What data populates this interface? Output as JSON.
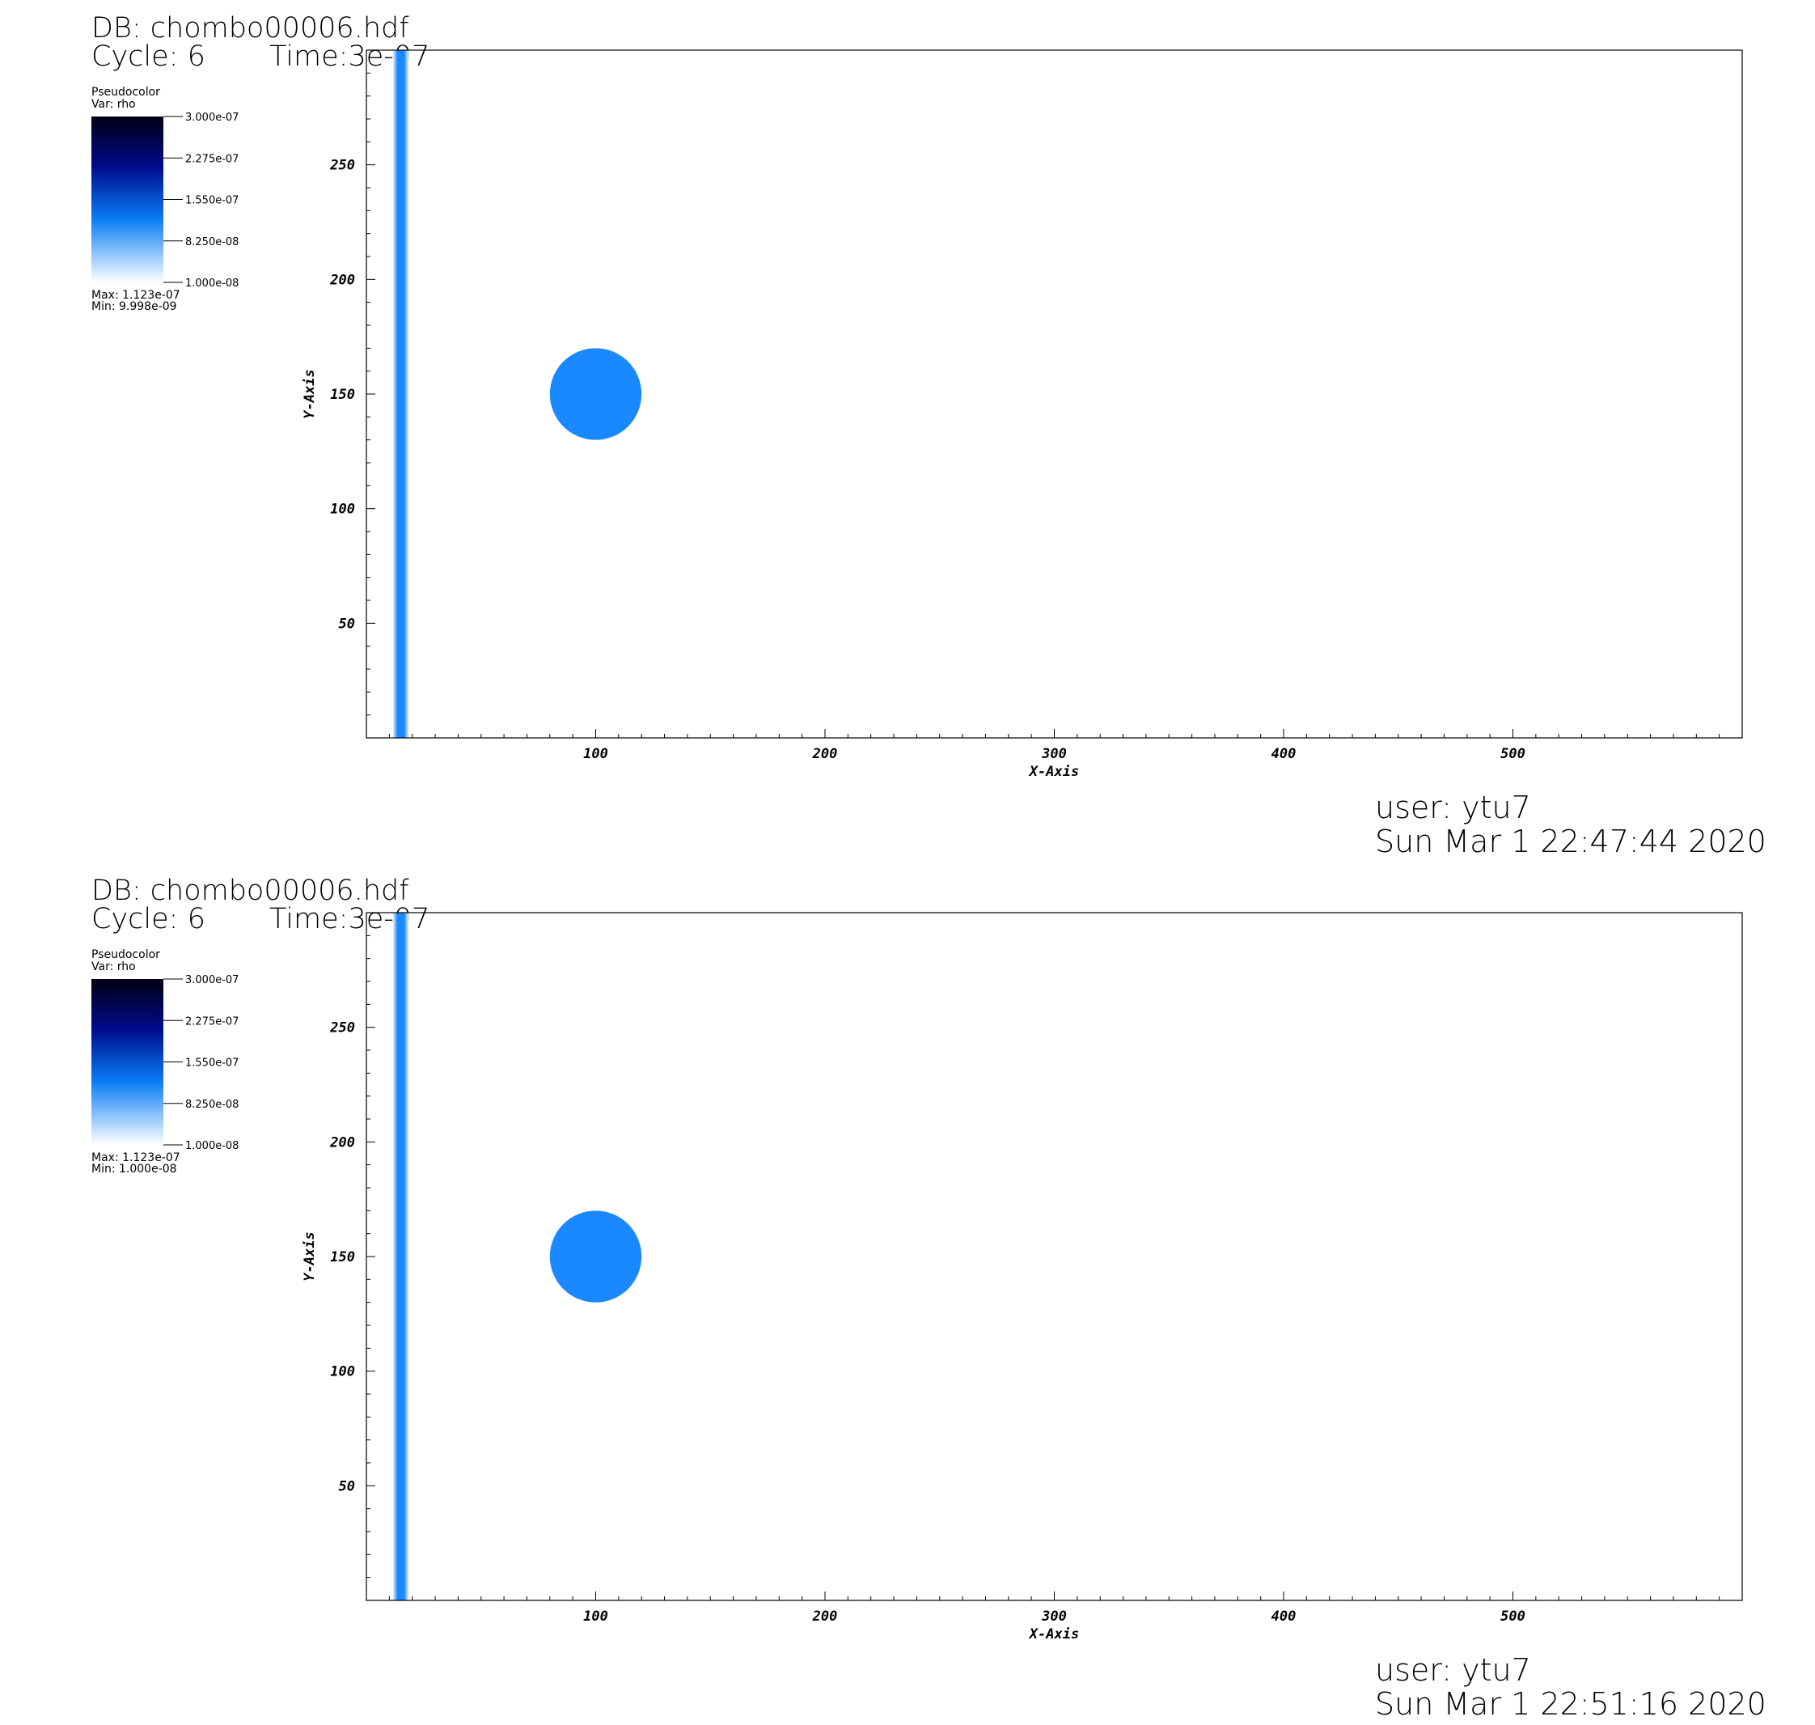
{
  "panels": [
    {
      "db_label": "DB: chombo00006.hdf",
      "cycle_label": "Cycle: 6",
      "time_label": "Time:3e-07",
      "legend": {
        "plot_type": "Pseudocolor",
        "var_label": "Var: rho",
        "ticks": [
          "3.000e-07",
          "2.275e-07",
          "1.550e-07",
          "8.250e-08",
          "1.000e-08"
        ],
        "max_label": "Max:  1.123e-07",
        "min_label": "Min:  9.998e-09"
      },
      "user_label": "user: ytu7",
      "date_label": "Sun Mar  1 22:47:44 2020"
    },
    {
      "db_label": "DB: chombo00006.hdf",
      "cycle_label": "Cycle: 6",
      "time_label": "Time:3e-07",
      "legend": {
        "plot_type": "Pseudocolor",
        "var_label": "Var: rho",
        "ticks": [
          "3.000e-07",
          "2.275e-07",
          "1.550e-07",
          "8.250e-08",
          "1.000e-08"
        ],
        "max_label": "Max:  1.123e-07",
        "min_label": "Min:  1.000e-08"
      },
      "user_label": "user: ytu7",
      "date_label": "Sun Mar  1 22:51:16 2020"
    }
  ],
  "chart_data": [
    {
      "type": "heatmap",
      "variable": "rho",
      "xlabel": "X-Axis",
      "ylabel": "Y-Axis",
      "xlim": [
        0,
        600
      ],
      "ylim": [
        0,
        300
      ],
      "x_ticks": [
        100,
        200,
        300,
        400,
        500
      ],
      "y_ticks": [
        50,
        100,
        150,
        200,
        250
      ],
      "colorbar_range": [
        1e-08,
        3e-07
      ],
      "features": [
        {
          "name": "vertical band",
          "x_center": 15,
          "x_width": 3,
          "value": 1.123e-07
        },
        {
          "name": "circle",
          "x_center": 100,
          "y_center": 150,
          "radius": 20,
          "value": 1.123e-07
        }
      ],
      "background_value": 1e-08
    },
    {
      "type": "heatmap",
      "variable": "rho",
      "xlabel": "X-Axis",
      "ylabel": "Y-Axis",
      "xlim": [
        0,
        600
      ],
      "ylim": [
        0,
        300
      ],
      "x_ticks": [
        100,
        200,
        300,
        400,
        500
      ],
      "y_ticks": [
        50,
        100,
        150,
        200,
        250
      ],
      "colorbar_range": [
        1e-08,
        3e-07
      ],
      "features": [
        {
          "name": "vertical band",
          "x_center": 15,
          "x_width": 3,
          "value": 1.123e-07
        },
        {
          "name": "circle",
          "x_center": 100,
          "y_center": 150,
          "radius": 20,
          "value": 1.123e-07
        }
      ],
      "background_value": 1e-08
    }
  ],
  "colors": {
    "feature": "#1a88ff",
    "background": "#ffffff",
    "colormap_top": "#000012",
    "colormap_mid": "#000a8c",
    "colormap_blue": "#0a7df5",
    "colormap_bottom": "#ffffff"
  }
}
